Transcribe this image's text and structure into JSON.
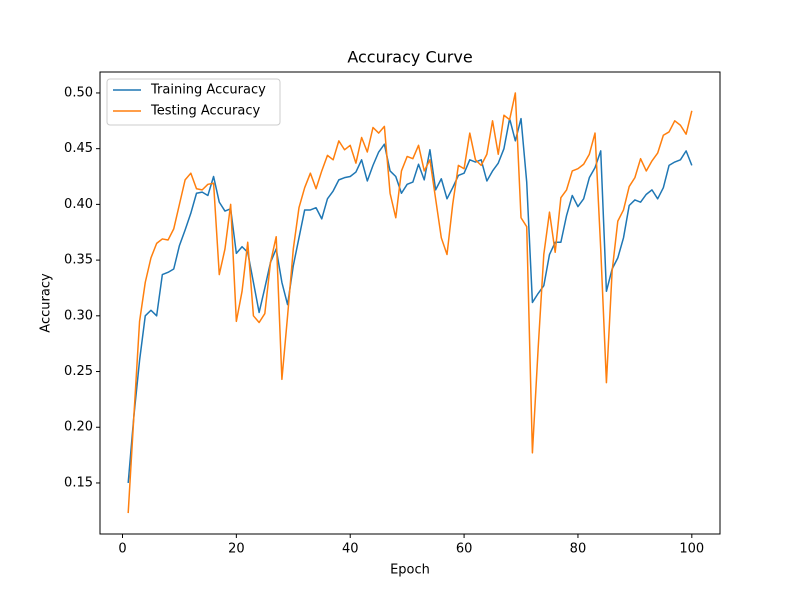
{
  "chart_data": {
    "type": "line",
    "title": "Accuracy Curve",
    "x_label": "Epoch",
    "y_label": "Accuracy",
    "x": [
      1,
      2,
      3,
      4,
      5,
      6,
      7,
      8,
      9,
      10,
      11,
      12,
      13,
      14,
      15,
      16,
      17,
      18,
      19,
      20,
      21,
      22,
      23,
      24,
      25,
      26,
      27,
      28,
      29,
      30,
      31,
      32,
      33,
      34,
      35,
      36,
      37,
      38,
      39,
      40,
      41,
      42,
      43,
      44,
      45,
      46,
      47,
      48,
      49,
      50,
      51,
      52,
      53,
      54,
      55,
      56,
      57,
      58,
      59,
      60,
      61,
      62,
      63,
      64,
      65,
      66,
      67,
      68,
      69,
      70,
      71,
      72,
      73,
      74,
      75,
      76,
      77,
      78,
      79,
      80,
      81,
      82,
      83,
      84,
      85,
      86,
      87,
      88,
      89,
      90,
      91,
      92,
      93,
      94,
      95,
      96,
      97,
      98,
      99,
      100
    ],
    "series": [
      {
        "name": "Training Accuracy",
        "color": "#1f77b4",
        "values": [
          0.15,
          0.21,
          0.26,
          0.3,
          0.305,
          0.3,
          0.337,
          0.339,
          0.342,
          0.363,
          0.377,
          0.392,
          0.41,
          0.411,
          0.408,
          0.425,
          0.402,
          0.394,
          0.396,
          0.356,
          0.362,
          0.357,
          0.33,
          0.303,
          0.325,
          0.348,
          0.36,
          0.33,
          0.31,
          0.345,
          0.37,
          0.395,
          0.395,
          0.397,
          0.387,
          0.405,
          0.412,
          0.422,
          0.424,
          0.425,
          0.429,
          0.44,
          0.421,
          0.435,
          0.447,
          0.454,
          0.43,
          0.425,
          0.41,
          0.418,
          0.42,
          0.436,
          0.422,
          0.449,
          0.413,
          0.423,
          0.405,
          0.415,
          0.426,
          0.428,
          0.44,
          0.438,
          0.44,
          0.421,
          0.43,
          0.437,
          0.45,
          0.477,
          0.457,
          0.477,
          0.42,
          0.312,
          0.32,
          0.327,
          0.355,
          0.366,
          0.366,
          0.39,
          0.408,
          0.398,
          0.405,
          0.424,
          0.433,
          0.448,
          0.322,
          0.342,
          0.352,
          0.37,
          0.399,
          0.404,
          0.402,
          0.409,
          0.413,
          0.405,
          0.415,
          0.435,
          0.438,
          0.44,
          0.448,
          0.435
        ]
      },
      {
        "name": "Testing Accuracy",
        "color": "#ff7f0e",
        "values": [
          0.123,
          0.21,
          0.295,
          0.33,
          0.352,
          0.365,
          0.369,
          0.368,
          0.378,
          0.4,
          0.422,
          0.428,
          0.414,
          0.413,
          0.418,
          0.419,
          0.337,
          0.36,
          0.4,
          0.295,
          0.322,
          0.366,
          0.3,
          0.294,
          0.302,
          0.348,
          0.371,
          0.243,
          0.3,
          0.36,
          0.397,
          0.415,
          0.428,
          0.414,
          0.43,
          0.444,
          0.44,
          0.457,
          0.449,
          0.453,
          0.437,
          0.46,
          0.447,
          0.469,
          0.464,
          0.47,
          0.41,
          0.388,
          0.43,
          0.443,
          0.441,
          0.453,
          0.43,
          0.44,
          0.405,
          0.37,
          0.355,
          0.4,
          0.435,
          0.432,
          0.464,
          0.44,
          0.435,
          0.445,
          0.475,
          0.445,
          0.48,
          0.476,
          0.5,
          0.388,
          0.38,
          0.177,
          0.27,
          0.355,
          0.393,
          0.357,
          0.406,
          0.413,
          0.43,
          0.432,
          0.436,
          0.445,
          0.464,
          0.36,
          0.24,
          0.34,
          0.385,
          0.395,
          0.416,
          0.424,
          0.441,
          0.43,
          0.439,
          0.446,
          0.462,
          0.465,
          0.475,
          0.471,
          0.463,
          0.484
        ]
      }
    ],
    "xlim": [
      -3.95,
      104.95
    ],
    "ylim": [
      0.1042,
      0.5188
    ],
    "xticks": [
      0,
      20,
      40,
      60,
      80,
      100
    ],
    "yticks": [
      0.15,
      {
        "value": 0.2,
        "label": "0.20"
      },
      0.25,
      {
        "value": 0.3,
        "label": "0.30"
      },
      0.35,
      {
        "value": 0.4,
        "label": "0.40"
      },
      0.45,
      {
        "value": 0.5,
        "label": "0.50"
      }
    ],
    "legend": "upper left",
    "grid": false
  }
}
